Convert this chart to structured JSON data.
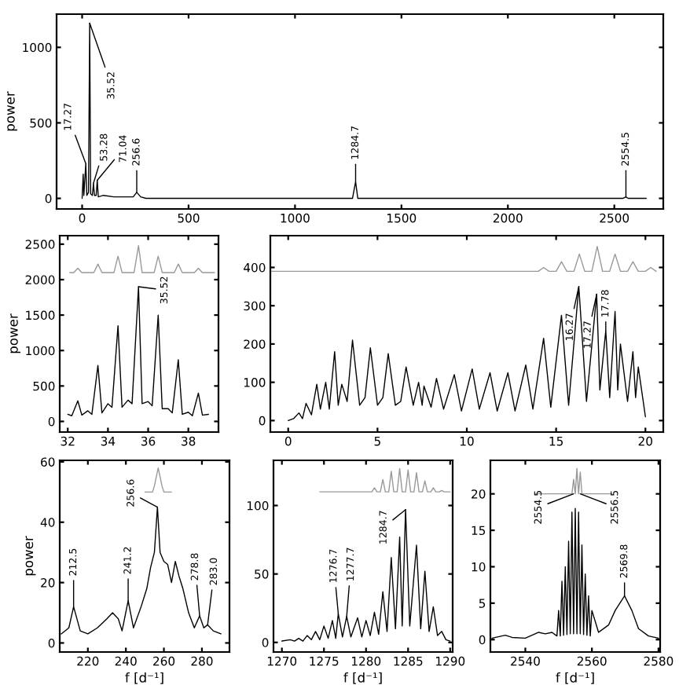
{
  "chart_data": [
    {
      "type": "line",
      "ylabel": "power",
      "xlim": [
        -120,
        2730
      ],
      "ylim": [
        -70,
        1220
      ],
      "xticks": [
        0,
        500,
        1000,
        1500,
        2000,
        2500
      ],
      "yticks": [
        0,
        500,
        1000
      ],
      "series": [
        {
          "color": "#000000",
          "x": [
            0,
            5,
            8,
            17.27,
            22,
            30,
            35.52,
            40,
            48,
            53.28,
            58,
            66,
            71.04,
            76,
            100,
            150,
            200,
            240,
            256.6,
            275,
            300,
            500,
            1000,
            1270,
            1284.7,
            1295,
            1500,
            2000,
            2540,
            2554.5,
            2565,
            2650
          ],
          "values": [
            0,
            160,
            20,
            230,
            20,
            40,
            1160,
            30,
            20,
            100,
            20,
            20,
            120,
            10,
            20,
            10,
            10,
            10,
            40,
            10,
            0,
            0,
            0,
            0,
            110,
            0,
            0,
            0,
            0,
            10,
            0,
            0
          ]
        }
      ],
      "annotations": [
        {
          "text": "17.27",
          "x": 17.27,
          "y": 230
        },
        {
          "text": "35.52",
          "x": 35.52,
          "y": 1160
        },
        {
          "text": "53.28",
          "x": 53.28,
          "y": 100
        },
        {
          "text": "71.04",
          "x": 71.04,
          "y": 120
        },
        {
          "text": "256.6",
          "x": 256.6,
          "y": 40
        },
        {
          "text": "1284.7",
          "x": 1284.7,
          "y": 110
        },
        {
          "text": "2554.5",
          "x": 2554.5,
          "y": 10
        }
      ]
    },
    {
      "type": "line",
      "ylabel": "power",
      "xlim": [
        31.6,
        39.5
      ],
      "ylim": [
        -150,
        2620
      ],
      "xticks": [
        32,
        34,
        36,
        38
      ],
      "yticks": [
        0,
        500,
        1000,
        1500,
        2000,
        2500
      ],
      "series": [
        {
          "color": "#000000",
          "x": [
            32,
            32.2,
            32.5,
            32.7,
            33,
            33.2,
            33.5,
            33.7,
            34,
            34.2,
            34.5,
            34.7,
            35,
            35.2,
            35.52,
            35.7,
            36,
            36.2,
            36.5,
            36.7,
            37,
            37.2,
            37.5,
            37.7,
            38,
            38.2,
            38.5,
            38.7,
            39
          ],
          "values": [
            100,
            80,
            290,
            90,
            150,
            100,
            790,
            120,
            250,
            200,
            1350,
            200,
            300,
            250,
            1900,
            250,
            280,
            220,
            1500,
            180,
            180,
            120,
            870,
            100,
            130,
            80,
            400,
            90,
            100
          ]
        },
        {
          "color": "#999999",
          "x": [
            32.1,
            32.3,
            32.5,
            32.7,
            33.3,
            33.5,
            33.7,
            34.3,
            34.5,
            34.7,
            35.3,
            35.52,
            35.7,
            36.3,
            36.5,
            36.7,
            37.3,
            37.5,
            37.7,
            38.3,
            38.5,
            38.7,
            39.3
          ],
          "values": [
            2100,
            2100,
            2160,
            2100,
            2100,
            2220,
            2100,
            2100,
            2330,
            2100,
            2100,
            2480,
            2100,
            2100,
            2330,
            2100,
            2100,
            2220,
            2100,
            2100,
            2160,
            2100,
            2100
          ]
        }
      ],
      "annotations": [
        {
          "text": "35.52",
          "x": 35.52,
          "y": 1900
        }
      ]
    },
    {
      "type": "line",
      "xlim": [
        -1,
        21
      ],
      "ylim": [
        -30,
        483
      ],
      "xticks": [
        0,
        5,
        10,
        15,
        20
      ],
      "yticks": [
        0,
        100,
        200,
        300,
        400
      ],
      "series": [
        {
          "color": "#000000",
          "x": [
            0,
            0.3,
            0.6,
            0.8,
            1,
            1.3,
            1.6,
            1.8,
            2.1,
            2.3,
            2.6,
            2.8,
            3,
            3.3,
            3.6,
            4,
            4.3,
            4.6,
            5,
            5.3,
            5.6,
            6,
            6.3,
            6.6,
            7,
            7.3,
            7.5,
            7.6,
            8,
            8.3,
            8.7,
            9.3,
            9.7,
            10.3,
            10.7,
            11.3,
            11.7,
            12.3,
            12.7,
            13.3,
            13.7,
            14.3,
            14.7,
            15.3,
            15.7,
            16.27,
            16.7,
            17.27,
            17.45,
            17.78,
            18,
            18.3,
            18.45,
            18.6,
            19,
            19.3,
            19.45,
            19.6,
            20
          ],
          "values": [
            0,
            5,
            20,
            5,
            45,
            15,
            95,
            30,
            100,
            30,
            180,
            40,
            95,
            50,
            210,
            40,
            60,
            190,
            40,
            60,
            175,
            40,
            50,
            140,
            40,
            100,
            40,
            90,
            35,
            110,
            30,
            120,
            25,
            135,
            30,
            125,
            25,
            125,
            25,
            145,
            30,
            215,
            35,
            275,
            40,
            350,
            50,
            330,
            80,
            235,
            60,
            285,
            80,
            200,
            50,
            180,
            60,
            140,
            10
          ]
        },
        {
          "color": "#999999",
          "x": [
            -1,
            14,
            14.3,
            14.6,
            15,
            15.3,
            15.6,
            16,
            16.3,
            16.6,
            17,
            17.3,
            17.6,
            18,
            18.3,
            18.6,
            19,
            19.3,
            19.6,
            20,
            20.3,
            20.6
          ],
          "values": [
            390,
            390,
            400,
            390,
            390,
            415,
            390,
            390,
            435,
            390,
            390,
            455,
            390,
            390,
            435,
            390,
            390,
            415,
            390,
            390,
            400,
            390
          ]
        }
      ],
      "annotations": [
        {
          "text": "16.27",
          "x": 16.27,
          "y": 350
        },
        {
          "text": "17.27",
          "x": 17.27,
          "y": 330
        },
        {
          "text": "17.78",
          "x": 17.78,
          "y": 235
        }
      ]
    },
    {
      "type": "line",
      "ylabel": "power",
      "xlabel": "f [d⁻¹]",
      "xlim": [
        205.2,
        294.5
      ],
      "ylim": [
        -3,
        60.5
      ],
      "xticks": [
        220,
        240,
        260,
        280
      ],
      "yticks": [
        0,
        20,
        40,
        60
      ],
      "series": [
        {
          "color": "#000000",
          "x": [
            206,
            210,
            212.5,
            216,
            220,
            225,
            230,
            233,
            236,
            238,
            241.2,
            244,
            248,
            251,
            253,
            255,
            256.6,
            258,
            260,
            262,
            264,
            266,
            268,
            270,
            273,
            276,
            278.8,
            281,
            283.0,
            286,
            290
          ],
          "values": [
            3,
            5,
            12,
            4,
            3,
            5,
            8,
            10,
            8,
            4,
            14,
            5,
            12,
            18,
            25,
            30,
            45,
            30,
            27,
            26,
            20,
            27,
            22,
            18,
            10,
            5,
            9,
            5,
            6,
            4,
            3
          ]
        },
        {
          "color": "#999999",
          "x": [
            250,
            254,
            255,
            256,
            257,
            258,
            259,
            260,
            264
          ],
          "values": [
            50,
            50,
            52,
            55,
            58,
            55,
            52,
            50,
            50
          ]
        }
      ],
      "annotations": [
        {
          "text": "212.5",
          "x": 212.5,
          "y": 12
        },
        {
          "text": "241.2",
          "x": 241.2,
          "y": 14
        },
        {
          "text": "256.6",
          "x": 256.6,
          "y": 45
        },
        {
          "text": "278.8",
          "x": 278.8,
          "y": 9
        },
        {
          "text": "283.0",
          "x": 283.0,
          "y": 6
        }
      ]
    },
    {
      "type": "line",
      "xlabel": "f [d⁻¹]",
      "xlim": [
        1269,
        1290.3
      ],
      "ylim": [
        -7,
        133
      ],
      "xticks": [
        1270,
        1275,
        1280,
        1285,
        1290
      ],
      "yticks": [
        0,
        50,
        100
      ],
      "series": [
        {
          "color": "#000000",
          "x": [
            1270,
            1271,
            1271.5,
            1272,
            1272.5,
            1273,
            1273.5,
            1274,
            1274.5,
            1275,
            1275.5,
            1276,
            1276.4,
            1276.7,
            1277.2,
            1277.7,
            1278.2,
            1279,
            1279.5,
            1280,
            1280.5,
            1281,
            1281.5,
            1282,
            1282.5,
            1283,
            1283.5,
            1284,
            1284.3,
            1284.7,
            1285.2,
            1286,
            1286.5,
            1287,
            1287.5,
            1288,
            1288.5,
            1289,
            1289.5,
            1290
          ],
          "values": [
            1,
            2,
            1,
            3,
            1,
            5,
            2,
            8,
            2,
            12,
            3,
            16,
            3,
            21,
            4,
            19,
            4,
            18,
            4,
            16,
            5,
            22,
            6,
            37,
            8,
            62,
            10,
            77,
            12,
            97,
            12,
            71,
            10,
            52,
            8,
            26,
            5,
            8,
            2,
            1
          ]
        },
        {
          "color": "#999999",
          "x": [
            1274.5,
            1280.7,
            1281,
            1281.3,
            1281.7,
            1282,
            1282.3,
            1282.7,
            1283,
            1283.3,
            1283.7,
            1284,
            1284.3,
            1284.7,
            1285,
            1285.3,
            1285.7,
            1286,
            1286.3,
            1286.7,
            1287,
            1287.3,
            1287.7,
            1288,
            1288.3,
            1288.7,
            1289,
            1289.3,
            1290
          ],
          "values": [
            110,
            110,
            113,
            110,
            110,
            119,
            110,
            110,
            125,
            110,
            110,
            127,
            110,
            110,
            126,
            110,
            110,
            124,
            110,
            110,
            118,
            110,
            110,
            113,
            110,
            110,
            111,
            110,
            110
          ]
        }
      ],
      "annotations": [
        {
          "text": "1276.7",
          "x": 1276.7,
          "y": 21
        },
        {
          "text": "1277.7",
          "x": 1277.7,
          "y": 19
        },
        {
          "text": "1284.7",
          "x": 1284.7,
          "y": 97
        }
      ]
    },
    {
      "type": "line",
      "xlabel": "f [d⁻¹]",
      "xlim": [
        2529.5,
        2580.5
      ],
      "ylim": [
        -1.7,
        24.6
      ],
      "xticks": [
        2540,
        2560,
        2580
      ],
      "yticks": [
        0,
        5,
        10,
        15,
        20
      ],
      "series": [
        {
          "color": "#000000",
          "x": [
            2530,
            2534,
            2536,
            2540,
            2544,
            2546,
            2548,
            2549.5,
            2550,
            2550.5,
            2551,
            2551.5,
            2552,
            2552.5,
            2553,
            2553.5,
            2554,
            2554.5,
            2555,
            2555.5,
            2556,
            2556.5,
            2557,
            2557.5,
            2558,
            2558.5,
            2559,
            2559.5,
            2560,
            2562,
            2565,
            2567,
            2569.8,
            2572,
            2574,
            2577,
            2580
          ],
          "values": [
            0.2,
            0.6,
            0.3,
            0.2,
            1,
            0.8,
            1,
            0.5,
            4,
            0.5,
            8,
            0.6,
            10,
            0.7,
            13.5,
            0.8,
            17.5,
            0.8,
            18,
            0.8,
            17.5,
            0.8,
            13,
            0.7,
            9,
            0.6,
            6,
            0.5,
            4,
            1,
            2,
            4,
            6,
            4,
            1.5,
            0.5,
            0.2
          ]
        },
        {
          "color": "#999999",
          "x": [
            2543,
            2554,
            2554.5,
            2555,
            2555.5,
            2556,
            2556.5,
            2557,
            2566
          ],
          "values": [
            20,
            20,
            22,
            20,
            23.5,
            20,
            23,
            20,
            20
          ]
        }
      ],
      "annotations": [
        {
          "text": "2554.5",
          "x": 2554.5,
          "y": 20
        },
        {
          "text": "2556.5",
          "x": 2556.5,
          "y": 20
        },
        {
          "text": "2569.8",
          "x": 2569.8,
          "y": 6
        }
      ]
    }
  ]
}
